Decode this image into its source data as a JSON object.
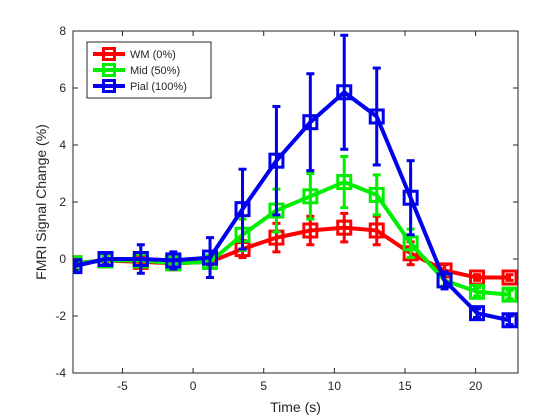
{
  "chart_data": {
    "type": "line",
    "title": "",
    "xlabel": "Time (s)",
    "ylabel": "FMRI Signal Change (%)",
    "xlim": [
      -8.5,
      23
    ],
    "ylim": [
      -4,
      8
    ],
    "xticks": [
      -5,
      0,
      5,
      10,
      15,
      20
    ],
    "yticks": [
      -4,
      -2,
      0,
      2,
      4,
      6,
      8
    ],
    "xtick_labels": [
      "-5",
      "0",
      "5",
      "10",
      "15",
      "20"
    ],
    "ytick_labels": [
      "-4",
      "-2",
      "0",
      "2",
      "4",
      "6",
      "8"
    ],
    "grid": false,
    "legend_position": "top-left",
    "x": [
      -8.4,
      -6.2,
      -3.7,
      -1.4,
      1.2,
      3.5,
      5.9,
      8.3,
      10.7,
      13.0,
      15.4,
      17.8,
      20.1,
      22.4
    ],
    "series": [
      {
        "name": "WM (0%)",
        "color": "#ff0000",
        "y": [
          -0.15,
          -0.05,
          -0.1,
          -0.15,
          -0.1,
          0.35,
          0.75,
          1.0,
          1.1,
          1.0,
          0.2,
          -0.4,
          -0.65,
          -0.65
        ],
        "err": [
          0.1,
          0.1,
          0.15,
          0.15,
          0.15,
          0.3,
          0.5,
          0.5,
          0.5,
          0.5,
          0.4,
          0.2,
          0.1,
          0.1
        ]
      },
      {
        "name": "Mid (50%)",
        "color": "#00ee00",
        "y": [
          -0.15,
          -0.05,
          -0.05,
          -0.15,
          -0.1,
          0.85,
          1.7,
          2.2,
          2.7,
          2.25,
          0.55,
          -0.75,
          -1.15,
          -1.25
        ],
        "err": [
          0.1,
          0.15,
          0.2,
          0.15,
          0.2,
          0.55,
          0.75,
          0.8,
          0.9,
          0.7,
          0.5,
          0.2,
          0.15,
          0.15
        ]
      },
      {
        "name": "Pial (100%)",
        "color": "#0000ee",
        "y": [
          -0.25,
          0.0,
          0.0,
          -0.05,
          0.05,
          1.75,
          3.45,
          4.8,
          5.85,
          5.0,
          2.15,
          -0.75,
          -1.9,
          -2.15
        ],
        "err": [
          0.15,
          0.2,
          0.5,
          0.3,
          0.7,
          1.4,
          1.9,
          1.7,
          2.0,
          1.7,
          1.3,
          0.3,
          0.15,
          0.15
        ]
      }
    ]
  }
}
